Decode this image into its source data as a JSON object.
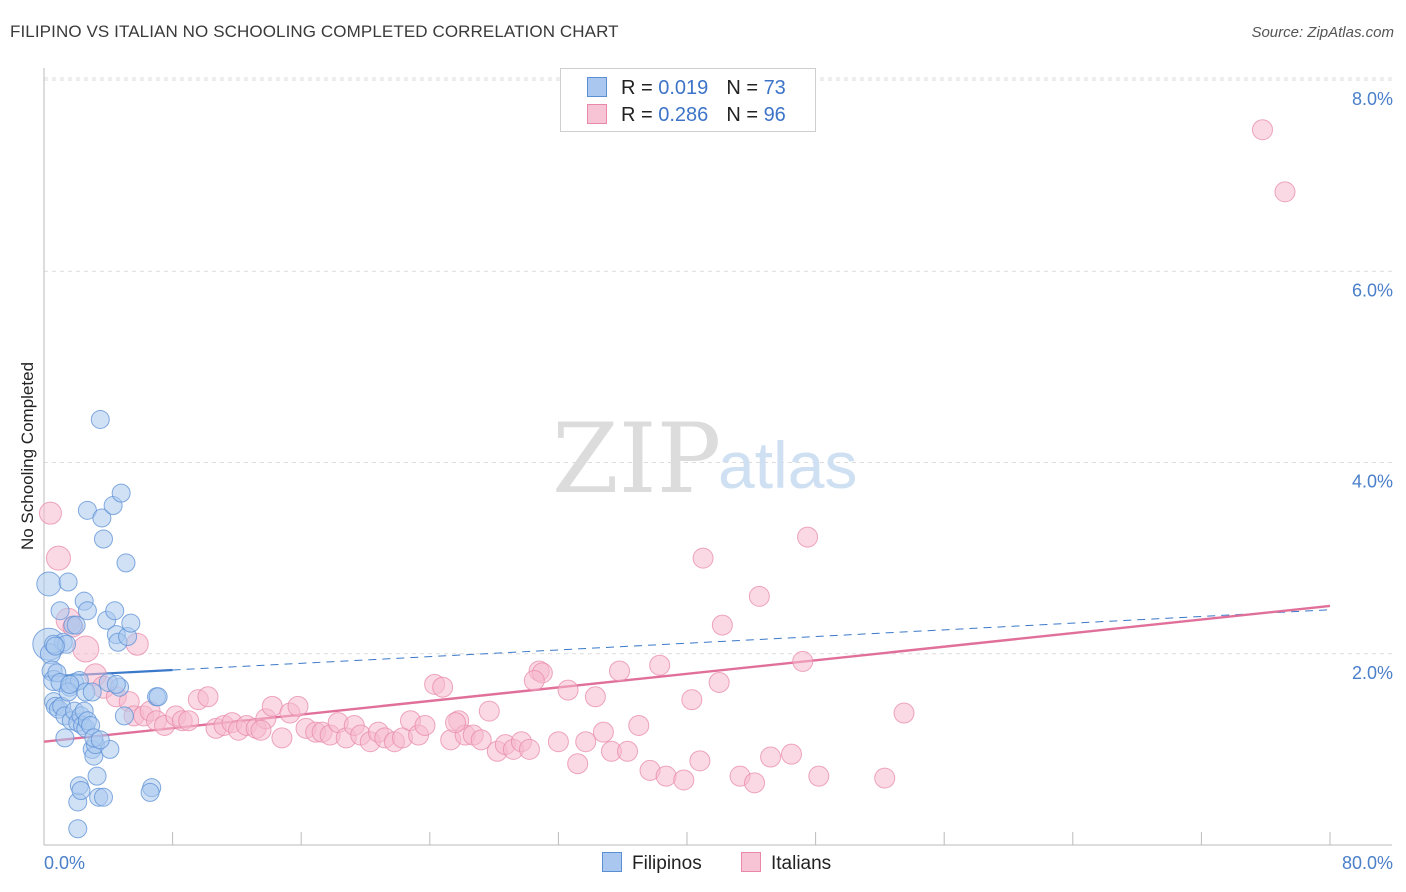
{
  "title": "FILIPINO VS ITALIAN NO SCHOOLING COMPLETED CORRELATION CHART",
  "source": "Source: ZipAtlas.com",
  "watermark": {
    "zip": "ZIP",
    "atlas": "atlas"
  },
  "colors": {
    "filipino_fill": "#aac8ef",
    "filipino_stroke": "#5b8fd4",
    "filipino_line": "#3a78c9",
    "italian_fill": "#f6b9cd",
    "italian_stroke": "#e889a9",
    "italian_line": "#e0709a",
    "tick_text": "#4a7fc9"
  },
  "legend": {
    "rows": [
      {
        "r_label": "R = ",
        "r_value": "0.019",
        "n_label": "N = ",
        "n_value": "73"
      },
      {
        "r_label": "R = ",
        "r_value": "0.286",
        "n_label": "N = ",
        "n_value": "96"
      }
    ]
  },
  "chart_data": {
    "type": "scatter",
    "title": "FILIPINO VS ITALIAN NO SCHOOLING COMPLETED CORRELATION CHART",
    "xlabel": "",
    "ylabel": "No Schooling Completed",
    "xlim": [
      0,
      80
    ],
    "ylim": [
      0,
      8.0
    ],
    "x_tick_labels": [
      "0.0%",
      "80.0%"
    ],
    "y_ticks": [
      2.0,
      4.0,
      6.0,
      8.0
    ],
    "y_tick_labels": [
      "2.0%",
      "4.0%",
      "6.0%",
      "8.0%"
    ],
    "grid": true,
    "legend_position": "top-center",
    "series": [
      {
        "name": "Filipinos",
        "r": 0.019,
        "n": 73,
        "trend": {
          "x0": 0,
          "y0": 1.76,
          "x1": 80,
          "y1": 2.46,
          "solid_until": 8
        },
        "points": [
          [
            0.3,
            2.1,
            16
          ],
          [
            0.4,
            2.0,
            10
          ],
          [
            0.5,
            1.82,
            10
          ],
          [
            0.3,
            2.73,
            12
          ],
          [
            0.6,
            1.72,
            10
          ],
          [
            0.8,
            1.8,
            9
          ],
          [
            1.0,
            1.7,
            9
          ],
          [
            1.0,
            2.45,
            9
          ],
          [
            1.2,
            2.12,
            9
          ],
          [
            1.4,
            2.1,
            9
          ],
          [
            1.5,
            2.75,
            9
          ],
          [
            1.6,
            1.65,
            9
          ],
          [
            1.8,
            2.3,
            9
          ],
          [
            1.9,
            1.7,
            9
          ],
          [
            2.0,
            2.3,
            9
          ],
          [
            2.2,
            1.72,
            9
          ],
          [
            0.6,
            1.5,
            9
          ],
          [
            0.7,
            1.45,
            9
          ],
          [
            0.9,
            1.42,
            9
          ],
          [
            1.1,
            1.45,
            9
          ],
          [
            1.3,
            1.35,
            9
          ],
          [
            1.5,
            1.6,
            9
          ],
          [
            1.7,
            1.3,
            9
          ],
          [
            1.9,
            1.4,
            9
          ],
          [
            2.1,
            1.28,
            9
          ],
          [
            2.3,
            1.35,
            9
          ],
          [
            2.4,
            1.25,
            9
          ],
          [
            2.5,
            1.4,
            9
          ],
          [
            2.6,
            1.22,
            9
          ],
          [
            2.7,
            1.3,
            9
          ],
          [
            2.9,
            1.25,
            9
          ],
          [
            1.3,
            1.12,
            9
          ],
          [
            2.5,
            2.55,
            9
          ],
          [
            2.6,
            1.6,
            9
          ],
          [
            2.7,
            2.45,
            9
          ],
          [
            2.7,
            3.5,
            9
          ],
          [
            3.0,
            1.0,
            9
          ],
          [
            3.1,
            0.93,
            9
          ],
          [
            3.2,
            1.05,
            9
          ],
          [
            3.1,
            1.12,
            9
          ],
          [
            3.5,
            4.45,
            9
          ],
          [
            3.6,
            3.42,
            9
          ],
          [
            3.7,
            3.2,
            9
          ],
          [
            3.9,
            2.35,
            9
          ],
          [
            4.1,
            1.0,
            9
          ],
          [
            4.3,
            3.55,
            9
          ],
          [
            4.4,
            2.45,
            9
          ],
          [
            4.5,
            2.2,
            9
          ],
          [
            4.6,
            2.12,
            9
          ],
          [
            4.7,
            1.65,
            9
          ],
          [
            4.8,
            3.68,
            9
          ],
          [
            5.0,
            1.35,
            9
          ],
          [
            5.1,
            2.95,
            9
          ],
          [
            5.2,
            2.18,
            9
          ],
          [
            5.4,
            2.32,
            9
          ],
          [
            7.0,
            1.55,
            9
          ],
          [
            7.1,
            1.55,
            9
          ],
          [
            6.7,
            0.6,
            9
          ],
          [
            6.6,
            0.55,
            9
          ],
          [
            2.1,
            0.45,
            9
          ],
          [
            2.2,
            0.62,
            9
          ],
          [
            2.3,
            0.57,
            9
          ],
          [
            3.3,
            0.72,
            9
          ],
          [
            3.4,
            0.5,
            9
          ],
          [
            3.7,
            0.5,
            9
          ],
          [
            2.1,
            0.17,
            9
          ],
          [
            0.6,
            2.1,
            9
          ],
          [
            0.7,
            2.08,
            9
          ],
          [
            3.0,
            1.6,
            9
          ],
          [
            4.0,
            1.7,
            9
          ],
          [
            4.5,
            1.68,
            9
          ],
          [
            1.6,
            1.68,
            9
          ],
          [
            3.5,
            1.1,
            9
          ]
        ]
      },
      {
        "name": "Italians",
        "r": 0.286,
        "n": 96,
        "trend": {
          "x0": 0,
          "y0": 1.08,
          "x1": 80,
          "y1": 2.5
        },
        "points": [
          [
            0.4,
            3.47,
            11
          ],
          [
            0.9,
            3.0,
            12
          ],
          [
            1.5,
            2.35,
            12
          ],
          [
            2.6,
            2.05,
            13
          ],
          [
            1.8,
            2.28,
            10
          ],
          [
            3.2,
            1.78,
            11
          ],
          [
            3.7,
            1.65,
            11
          ],
          [
            4.5,
            1.55,
            10
          ],
          [
            5.3,
            1.5,
            10
          ],
          [
            5.6,
            1.35,
            10
          ],
          [
            5.8,
            2.1,
            11
          ],
          [
            6.2,
            1.35,
            10
          ],
          [
            6.6,
            1.4,
            10
          ],
          [
            7.0,
            1.3,
            10
          ],
          [
            7.5,
            1.25,
            10
          ],
          [
            8.2,
            1.35,
            10
          ],
          [
            8.6,
            1.3,
            10
          ],
          [
            9.0,
            1.3,
            10
          ],
          [
            9.6,
            1.52,
            10
          ],
          [
            10.2,
            1.55,
            10
          ],
          [
            10.7,
            1.22,
            10
          ],
          [
            11.2,
            1.25,
            10
          ],
          [
            11.7,
            1.28,
            10
          ],
          [
            12.1,
            1.2,
            10
          ],
          [
            12.6,
            1.25,
            10
          ],
          [
            13.2,
            1.22,
            10
          ],
          [
            13.8,
            1.32,
            10
          ],
          [
            14.2,
            1.45,
            10
          ],
          [
            14.8,
            1.12,
            10
          ],
          [
            15.3,
            1.38,
            10
          ],
          [
            15.8,
            1.45,
            10
          ],
          [
            16.3,
            1.22,
            10
          ],
          [
            16.9,
            1.18,
            10
          ],
          [
            17.3,
            1.18,
            10
          ],
          [
            17.8,
            1.15,
            10
          ],
          [
            18.3,
            1.28,
            10
          ],
          [
            18.8,
            1.12,
            10
          ],
          [
            19.3,
            1.25,
            10
          ],
          [
            19.7,
            1.15,
            10
          ],
          [
            20.3,
            1.08,
            10
          ],
          [
            20.8,
            1.18,
            10
          ],
          [
            21.2,
            1.12,
            10
          ],
          [
            21.8,
            1.08,
            10
          ],
          [
            22.3,
            1.12,
            10
          ],
          [
            22.8,
            1.3,
            10
          ],
          [
            23.3,
            1.15,
            10
          ],
          [
            23.7,
            1.25,
            10
          ],
          [
            24.3,
            1.68,
            10
          ],
          [
            24.8,
            1.65,
            10
          ],
          [
            25.3,
            1.1,
            10
          ],
          [
            25.8,
            1.3,
            10
          ],
          [
            26.2,
            1.15,
            10
          ],
          [
            26.7,
            1.15,
            10
          ],
          [
            27.2,
            1.1,
            10
          ],
          [
            27.7,
            1.4,
            10
          ],
          [
            28.2,
            0.98,
            10
          ],
          [
            28.7,
            1.05,
            10
          ],
          [
            29.2,
            1.0,
            10
          ],
          [
            29.7,
            1.08,
            10
          ],
          [
            30.2,
            1.0,
            10
          ],
          [
            30.8,
            1.82,
            10
          ],
          [
            31.0,
            1.8,
            10
          ],
          [
            32.0,
            1.08,
            10
          ],
          [
            32.6,
            1.62,
            10
          ],
          [
            33.2,
            0.85,
            10
          ],
          [
            33.7,
            1.08,
            10
          ],
          [
            34.3,
            1.55,
            10
          ],
          [
            34.8,
            1.18,
            10
          ],
          [
            35.3,
            0.98,
            10
          ],
          [
            35.8,
            1.82,
            10
          ],
          [
            36.3,
            0.98,
            10
          ],
          [
            37.0,
            1.25,
            10
          ],
          [
            37.7,
            0.78,
            10
          ],
          [
            38.3,
            1.88,
            10
          ],
          [
            38.7,
            0.72,
            10
          ],
          [
            39.8,
            0.68,
            10
          ],
          [
            40.3,
            1.52,
            10
          ],
          [
            40.8,
            0.88,
            10
          ],
          [
            41.0,
            3.0,
            10
          ],
          [
            42.0,
            1.7,
            10
          ],
          [
            42.2,
            2.3,
            10
          ],
          [
            43.3,
            0.72,
            10
          ],
          [
            44.2,
            0.65,
            10
          ],
          [
            44.5,
            2.6,
            10
          ],
          [
            45.2,
            0.92,
            10
          ],
          [
            46.5,
            0.95,
            10
          ],
          [
            47.2,
            1.92,
            10
          ],
          [
            47.5,
            3.22,
            10
          ],
          [
            48.2,
            0.72,
            10
          ],
          [
            52.3,
            0.7,
            10
          ],
          [
            53.5,
            1.38,
            10
          ],
          [
            75.8,
            7.48,
            10
          ],
          [
            77.2,
            6.83,
            10
          ],
          [
            30.5,
            1.72,
            10
          ],
          [
            25.6,
            1.28,
            10
          ],
          [
            13.5,
            1.2,
            10
          ]
        ]
      }
    ]
  }
}
